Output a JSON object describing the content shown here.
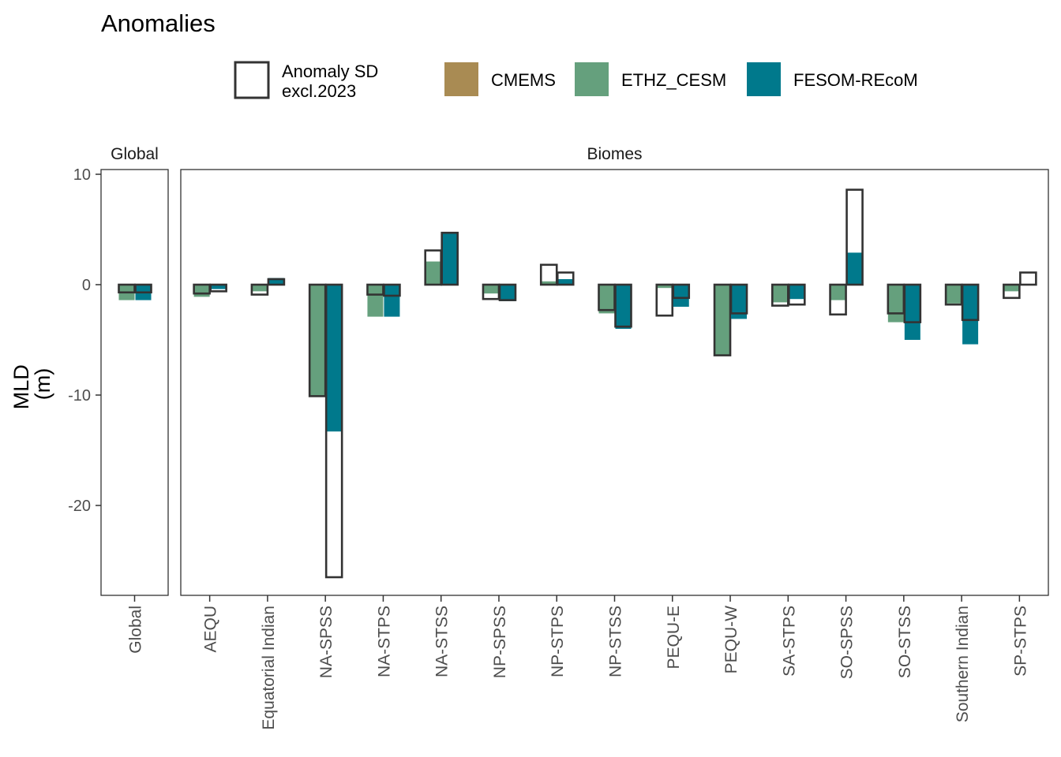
{
  "chart_data": {
    "type": "bar",
    "title": "Anomalies",
    "ylabel": [
      "MLD",
      "(m)"
    ],
    "xlabel": "",
    "ylim": [
      -28.2,
      10
    ],
    "yticks": [
      10,
      0,
      -10,
      -20
    ],
    "grid": false,
    "legend_position": "top",
    "legend": [
      {
        "key": "sd",
        "label_lines": [
          "Anomaly SD",
          "excl.2023"
        ],
        "style": "outline"
      },
      {
        "key": "CMEMS",
        "label": "CMEMS",
        "color": "#A98B53"
      },
      {
        "key": "ETHZ_CESM",
        "label": "ETHZ_CESM",
        "color": "#65A07D"
      },
      {
        "key": "FESOM-REcoM",
        "label": "FESOM-REcoM",
        "color": "#00798C"
      }
    ],
    "colors": {
      "CMEMS": "#A98B53",
      "ETHZ_CESM": "#65A07D",
      "FESOM-REcoM": "#00798C",
      "sd_outline": "#333333"
    },
    "series_bar_order": [
      "ETHZ_CESM",
      "FESOM-REcoM"
    ],
    "panels": [
      {
        "name": "Global",
        "categories": [
          "Global"
        ],
        "anomaly": {
          "ETHZ_CESM": [
            -1.4
          ],
          "FESOM-REcoM": [
            -1.4
          ]
        },
        "sd": {
          "ETHZ_CESM": [
            -0.7
          ],
          "FESOM-REcoM": [
            -0.7
          ]
        }
      },
      {
        "name": "Biomes",
        "categories": [
          "AEQU",
          "Equatorial Indian",
          "NA-SPSS",
          "NA-STPS",
          "NA-STSS",
          "NP-SPSS",
          "NP-STPS",
          "NP-STSS",
          "PEQU-E",
          "PEQU-W",
          "SA-STPS",
          "SO-SPSS",
          "SO-STSS",
          "Southern Indian",
          "SP-STPS"
        ],
        "anomaly": {
          "ETHZ_CESM": [
            -1.1,
            -0.6,
            -10.1,
            -2.9,
            2.1,
            -0.8,
            0.3,
            -2.6,
            -0.3,
            -6.4,
            -1.6,
            -1.4,
            -3.4,
            -1.7,
            -0.6
          ],
          "FESOM-REcoM": [
            -0.4,
            0.6,
            -13.3,
            -2.9,
            4.7,
            -1.5,
            0.5,
            -4.0,
            -2.0,
            -3.1,
            -1.3,
            2.9,
            -5.0,
            -5.4,
            0.0
          ]
        },
        "sd": {
          "ETHZ_CESM": [
            -0.8,
            -0.9,
            -10.1,
            -0.9,
            3.1,
            -1.3,
            1.8,
            -2.3,
            -2.8,
            -6.4,
            -1.9,
            -2.7,
            -2.6,
            -1.8,
            -1.2
          ],
          "FESOM-REcoM": [
            -0.6,
            0.5,
            -26.5,
            -1.0,
            4.7,
            -1.4,
            1.1,
            -3.8,
            -1.2,
            -2.6,
            -1.8,
            8.6,
            -3.4,
            -3.2,
            1.1
          ]
        }
      }
    ]
  }
}
